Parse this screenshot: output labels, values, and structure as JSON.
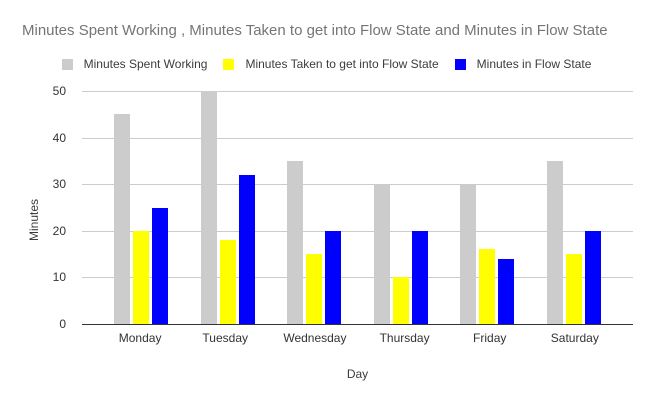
{
  "chart_data": {
    "type": "bar",
    "title": "Minutes Spent Working , Minutes Taken to get into Flow State and Minutes in Flow State",
    "xlabel": "Day",
    "ylabel": "Minutes",
    "ylim": [
      0,
      50
    ],
    "yticks": [
      0,
      10,
      20,
      30,
      40,
      50
    ],
    "grid": true,
    "legend_position": "top",
    "categories": [
      "Monday",
      "Tuesday",
      "Wednesday",
      "Thursday",
      "Friday",
      "Saturday"
    ],
    "series": [
      {
        "name": "Minutes Spent Working",
        "color": "#cccccc",
        "values": [
          45,
          50,
          35,
          30,
          30,
          35
        ]
      },
      {
        "name": "Minutes Taken to get into Flow State",
        "color": "#ffff00",
        "values": [
          20,
          18,
          15,
          10,
          16,
          15
        ]
      },
      {
        "name": "Minutes in Flow State",
        "color": "#0000ff",
        "values": [
          25,
          32,
          20,
          20,
          14,
          20
        ]
      }
    ],
    "colors": {
      "title_text": "#757575",
      "tick_text": "#333333",
      "gridline": "#cccccc",
      "baseline": "#333333",
      "background": "#ffffff"
    }
  }
}
